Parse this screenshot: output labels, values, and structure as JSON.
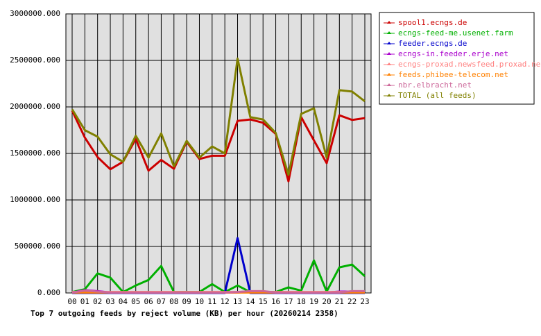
{
  "chart_data": {
    "type": "line",
    "title": "Top 7 outgoing feeds by reject volume (KB) per hour (20260214 2358)",
    "categories": [
      "00",
      "01",
      "02",
      "03",
      "04",
      "05",
      "06",
      "07",
      "08",
      "09",
      "10",
      "11",
      "12",
      "13",
      "14",
      "15",
      "16",
      "17",
      "18",
      "19",
      "20",
      "21",
      "22",
      "23"
    ],
    "ylim": [
      0,
      3000000
    ],
    "yticks": [
      {
        "value": 0,
        "label": "0.000"
      },
      {
        "value": 500000,
        "label": "500000.000"
      },
      {
        "value": 1000000,
        "label": "1000000.000"
      },
      {
        "value": 1500000,
        "label": "1500000.000"
      },
      {
        "value": 2000000,
        "label": "2000000.000"
      },
      {
        "value": 2500000,
        "label": "2500000.000"
      },
      {
        "value": 3000000,
        "label": "3000000.000"
      }
    ],
    "grid": true,
    "series": [
      {
        "name": "spool1.ecngs.de",
        "color": "#cc0000",
        "values": [
          1960000,
          1670000,
          1460000,
          1330000,
          1410000,
          1655000,
          1315000,
          1430000,
          1335000,
          1625000,
          1440000,
          1475000,
          1475000,
          1850000,
          1865000,
          1830000,
          1710000,
          1200000,
          1890000,
          1640000,
          1395000,
          1910000,
          1860000,
          1880000
        ]
      },
      {
        "name": "ecngs-feed-me.usenet.farm",
        "color": "#00b000",
        "values": [
          10000,
          40000,
          210000,
          165000,
          10000,
          80000,
          140000,
          290000,
          10000,
          10000,
          10000,
          95000,
          10000,
          80000,
          10000,
          10000,
          10000,
          60000,
          25000,
          350000,
          15000,
          275000,
          305000,
          180000
        ]
      },
      {
        "name": "feeder.ecngs.de",
        "color": "#0000cc",
        "values": [
          0,
          0,
          0,
          0,
          0,
          0,
          0,
          0,
          0,
          0,
          0,
          0,
          0,
          590000,
          0,
          0,
          0,
          0,
          0,
          0,
          0,
          0,
          0,
          0
        ]
      },
      {
        "name": "ecngs-in.feeder.erje.net",
        "color": "#aa00cc",
        "values": [
          5000,
          30000,
          20000,
          5000,
          5000,
          5000,
          5000,
          5000,
          5000,
          5000,
          5000,
          5000,
          5000,
          5000,
          15000,
          15000,
          5000,
          5000,
          5000,
          5000,
          5000,
          15000,
          15000,
          15000
        ]
      },
      {
        "name": "ecngs-proxad.newsfeed.proxad.net",
        "color": "#ff8080",
        "values": [
          10000,
          10000,
          10000,
          10000,
          10000,
          10000,
          10000,
          10000,
          10000,
          10000,
          10000,
          10000,
          10000,
          10000,
          10000,
          10000,
          10000,
          10000,
          10000,
          10000,
          10000,
          10000,
          10000,
          10000
        ]
      },
      {
        "name": "feeds.phibee-telecom.net",
        "color": "#ff8000",
        "values": [
          5000,
          5000,
          5000,
          5000,
          5000,
          5000,
          5000,
          5000,
          5000,
          5000,
          5000,
          5000,
          5000,
          5000,
          5000,
          5000,
          5000,
          5000,
          5000,
          5000,
          5000,
          5000,
          5000,
          5000
        ]
      },
      {
        "name": "nbr.elbracht.net",
        "color": "#cc6699",
        "values": [
          5000,
          25000,
          15000,
          5000,
          5000,
          5000,
          5000,
          5000,
          5000,
          5000,
          5000,
          5000,
          5000,
          10000,
          20000,
          20000,
          5000,
          5000,
          5000,
          5000,
          5000,
          5000,
          20000,
          20000
        ]
      },
      {
        "name": "TOTAL (all feeds)",
        "color": "#808000",
        "values": [
          1975000,
          1750000,
          1680000,
          1490000,
          1410000,
          1690000,
          1455000,
          1715000,
          1360000,
          1635000,
          1455000,
          1575000,
          1500000,
          2520000,
          1890000,
          1865000,
          1720000,
          1270000,
          1925000,
          1985000,
          1455000,
          2180000,
          2165000,
          2060000
        ]
      }
    ]
  }
}
